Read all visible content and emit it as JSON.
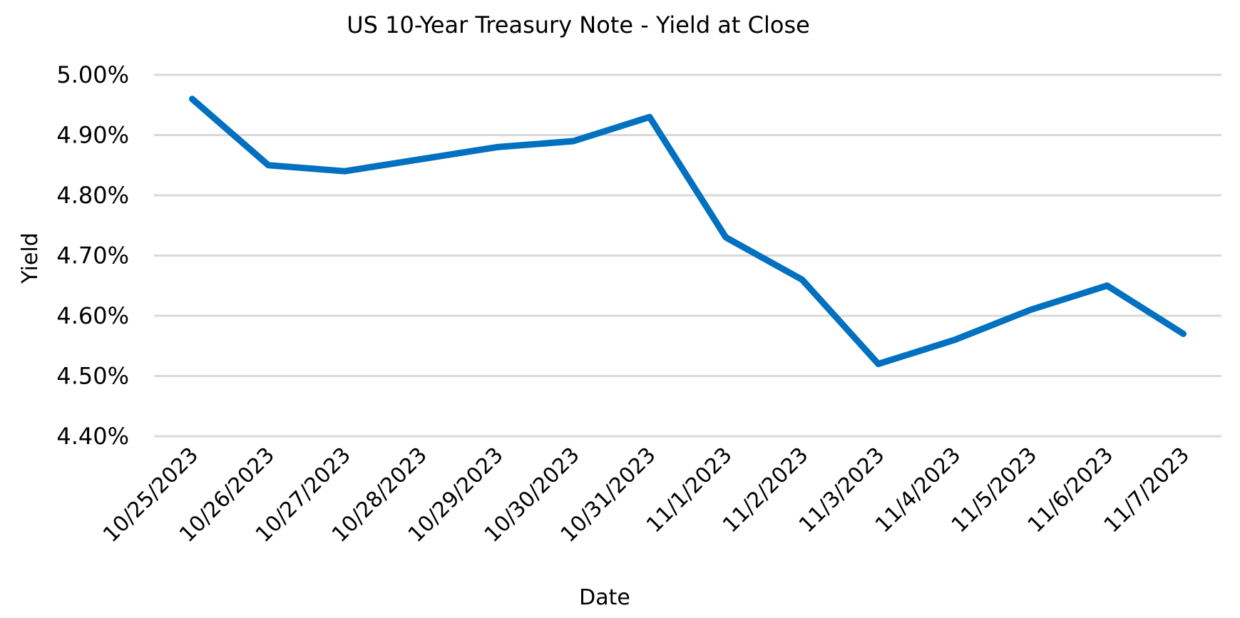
{
  "chart_data": {
    "type": "line",
    "title": "US 10-Year Treasury Note - Yield at Close",
    "xlabel": "Date",
    "ylabel": "Yield",
    "categories": [
      "10/25/2023",
      "10/26/2023",
      "10/27/2023",
      "10/28/2023",
      "10/29/2023",
      "10/30/2023",
      "10/31/2023",
      "11/1/2023",
      "11/2/2023",
      "11/3/2023",
      "11/4/2023",
      "11/5/2023",
      "11/6/2023",
      "11/7/2023"
    ],
    "series": [
      {
        "name": "Yield",
        "color": "#0070c0",
        "values": [
          4.96,
          4.85,
          4.84,
          4.86,
          4.88,
          4.89,
          4.93,
          4.73,
          4.66,
          4.52,
          4.56,
          4.61,
          4.65,
          4.57
        ]
      }
    ],
    "ylim": [
      4.4,
      5.0
    ],
    "yticks": [
      "5.00%",
      "4.90%",
      "4.80%",
      "4.70%",
      "4.60%",
      "4.50%",
      "4.40%"
    ],
    "ytick_values": [
      5.0,
      4.9,
      4.8,
      4.7,
      4.6,
      4.5,
      4.4
    ],
    "grid": true,
    "legend": "none"
  }
}
